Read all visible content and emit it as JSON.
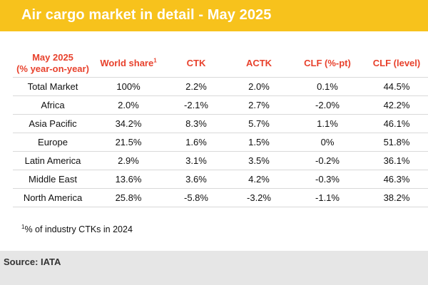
{
  "title": "Air cargo market in detail - May 2025",
  "table": {
    "header": {
      "region_line1": "May 2025",
      "region_line2": "(% year-on-year)",
      "world_share": "World share",
      "world_share_sup": "1",
      "ctk": "CTK",
      "actk": "ACTK",
      "clf_pt": "CLF (%-pt)",
      "clf_level": "CLF (level)"
    },
    "rows": [
      {
        "region": "Total Market",
        "world_share": "100%",
        "ctk": "2.2%",
        "actk": "2.0%",
        "clf_pt": "0.1%",
        "clf_level": "44.5%"
      },
      {
        "region": "Africa",
        "world_share": "2.0%",
        "ctk": "-2.1%",
        "actk": "2.7%",
        "clf_pt": "-2.0%",
        "clf_level": "42.2%"
      },
      {
        "region": "Asia Pacific",
        "world_share": "34.2%",
        "ctk": "8.3%",
        "actk": "5.7%",
        "clf_pt": "1.1%",
        "clf_level": "46.1%"
      },
      {
        "region": "Europe",
        "world_share": "21.5%",
        "ctk": "1.6%",
        "actk": "1.5%",
        "clf_pt": "0%",
        "clf_level": "51.8%"
      },
      {
        "region": "Latin America",
        "world_share": "2.9%",
        "ctk": "3.1%",
        "actk": "3.5%",
        "clf_pt": "-0.2%",
        "clf_level": "36.1%"
      },
      {
        "region": "Middle East",
        "world_share": "13.6%",
        "ctk": "3.6%",
        "actk": "4.2%",
        "clf_pt": "-0.3%",
        "clf_level": "46.3%"
      },
      {
        "region": "North America",
        "world_share": "25.8%",
        "ctk": "-5.8%",
        "actk": "-3.2%",
        "clf_pt": "-1.1%",
        "clf_level": "38.2%"
      }
    ]
  },
  "footnote": {
    "sup": "1",
    "text": "% of industry CTKs in 2024"
  },
  "source": "Source: IATA",
  "colors": {
    "banner": "#f7c21c",
    "header_text": "#e8412c",
    "source_bar": "#e6e6e6"
  }
}
